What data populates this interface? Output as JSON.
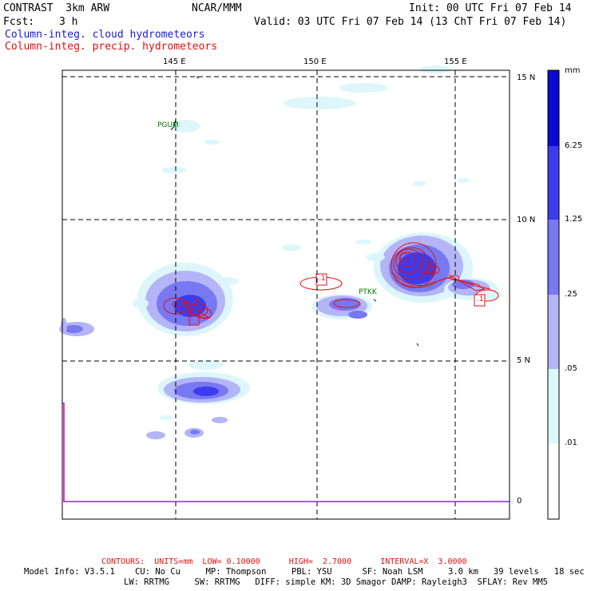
{
  "header": {
    "model": "CONTRAST  3km ARW",
    "org": "NCAR/MMM",
    "init": "Init: 00 UTC Fri 07 Feb 14",
    "fcst_label": "Fcst:",
    "fcst_value": "3 h",
    "valid": "Valid: 03 UTC Fri 07 Feb 14 (13 ChT Fri 07 Feb 14)",
    "field_cloud": "Column-integ. cloud hydrometeors",
    "field_precip": "Column-integ. precip. hydrometeors"
  },
  "axes": {
    "lon_labels": [
      "145 E",
      "150 E",
      "155 E"
    ],
    "lat_labels": [
      "15 N",
      "10 N",
      "5 N",
      "0"
    ]
  },
  "stations": [
    "PGUM",
    "PTKK"
  ],
  "contour_labels": [
    ".1",
    ".1",
    ".1"
  ],
  "colorbar": {
    "unit": "mm",
    "levels": [
      "6.25",
      "1.25",
      ".25",
      ".05",
      ".01"
    ],
    "colors": [
      "#0a0ad2",
      "#3c3cee",
      "#7878f2",
      "#b4b4f8",
      "#dcf6fb",
      "#ffffff"
    ]
  },
  "footer": {
    "contours": "CONTOURS:  UNITS=mm  LOW= 0.10000      HIGH=  2.7000      INTERVAL=X  3.0000",
    "model_info_1": "Model Info: V3.5.1    CU: No Cu     MP: Thompson     PBL: YSU      SF: Noah LSM     3.0 km   39 levels   18 sec",
    "model_info_2": "LW: RRTMG     SW: RRTMG   DIFF: simple KM: 3D Smagor DAMP: Rayleigh3  SFLAY: Rev MM5"
  }
}
